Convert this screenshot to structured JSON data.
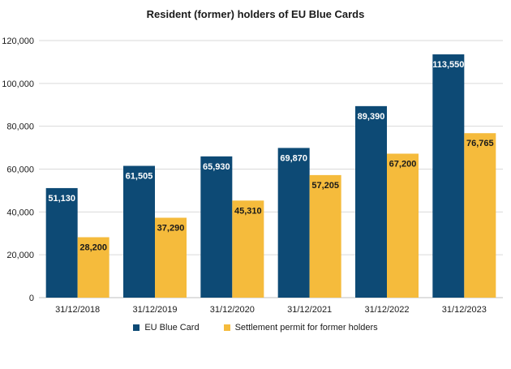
{
  "chart_data": {
    "type": "bar",
    "title": "Resident (former) holders of EU Blue Cards",
    "categories": [
      "31/12/2018",
      "31/12/2019",
      "31/12/2020",
      "31/12/2021",
      "31/12/2022",
      "31/12/2023"
    ],
    "series": [
      {
        "name": "EU Blue Card",
        "color": "#0d4a75",
        "values": [
          51130,
          61505,
          65930,
          69870,
          89390,
          113550
        ],
        "labels": [
          "51,130",
          "61,505",
          "65,930",
          "69,870",
          "89,390",
          "113,550"
        ]
      },
      {
        "name": "Settlement permit for former holders",
        "color": "#f5bb3c",
        "values": [
          28200,
          37290,
          45310,
          57205,
          67200,
          76765
        ],
        "labels": [
          "28,200",
          "37,290",
          "45,310",
          "57,205",
          "67,200",
          "76,765"
        ]
      }
    ],
    "yticks": [
      0,
      20000,
      40000,
      60000,
      80000,
      100000,
      120000
    ],
    "ytick_labels": [
      "0",
      "20,000",
      "40,000",
      "60,000",
      "80,000",
      "100,000",
      "120,000"
    ],
    "ylim": [
      0,
      120000
    ],
    "xlabel": "",
    "ylabel": "",
    "grid": true,
    "legend_position": "bottom"
  }
}
